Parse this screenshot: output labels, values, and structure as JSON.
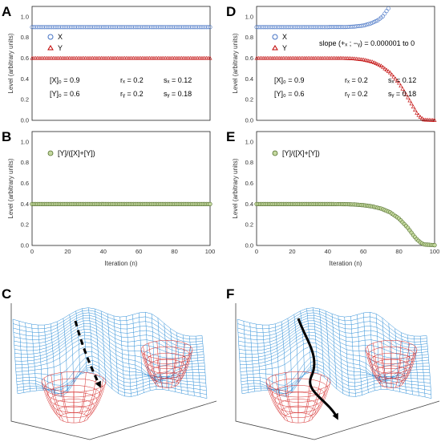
{
  "panels": {
    "A": "A",
    "B": "B",
    "C": "C",
    "D": "D",
    "E": "E",
    "F": "F"
  },
  "chart_data": [
    {
      "id": "A",
      "type": "scatter",
      "title": "",
      "xlabel": "",
      "ylabel": "Level (arbitrary units)",
      "xlim": [
        0,
        100
      ],
      "ylim": [
        0,
        1.1
      ],
      "yticks": [
        "0.0",
        "0.2",
        "0.4",
        "0.6",
        "0.8",
        "1.0"
      ],
      "xticks": [],
      "legend": [
        "X",
        "Y"
      ],
      "legend_position": "top-left",
      "series": [
        {
          "name": "X",
          "marker": "circle",
          "color": "#4472c4",
          "model": "constant",
          "value": 0.9,
          "n_points": 101
        },
        {
          "name": "Y",
          "marker": "triangle",
          "color": "#c00000",
          "model": "constant",
          "value": 0.6,
          "n_points": 101
        }
      ],
      "annotations": [
        [
          "[X]₀ = 0.9",
          "rₓ = 0.2",
          "sₓ = 0.12"
        ],
        [
          "[Y]₀ = 0.6",
          "rᵧ = 0.2",
          "sᵧ = 0.18"
        ]
      ]
    },
    {
      "id": "B",
      "type": "scatter",
      "title": "",
      "xlabel": "Iteration (n)",
      "ylabel": "Level (arbitrary units)",
      "xlim": [
        0,
        100
      ],
      "ylim": [
        0,
        1.1
      ],
      "yticks": [
        "0.0",
        "0.2",
        "0.4",
        "0.6",
        "0.8",
        "1.0"
      ],
      "xticks": [
        "0",
        "20",
        "40",
        "60",
        "80",
        "100"
      ],
      "legend": [
        "[Y]/([X]+[Y])"
      ],
      "legend_position": "top-left",
      "series": [
        {
          "name": "[Y]/([X]+[Y])",
          "marker": "circle",
          "color": "#9bbb59",
          "model": "constant",
          "value": 0.4,
          "n_points": 101
        }
      ]
    },
    {
      "id": "D",
      "type": "scatter",
      "title": "",
      "xlabel": "",
      "ylabel": "Level (arbitrary units)",
      "xlim": [
        0,
        100
      ],
      "ylim": [
        0,
        1.1
      ],
      "yticks": [
        "0.0",
        "0.2",
        "0.4",
        "0.6",
        "0.8",
        "1.0"
      ],
      "xticks": [],
      "legend": [
        "X",
        "Y"
      ],
      "legend_position": "top-left",
      "series": [
        {
          "name": "X",
          "marker": "circle",
          "color": "#4472c4",
          "model": "rising",
          "x": [
            0,
            40,
            50,
            55,
            60,
            64,
            68,
            71,
            74
          ],
          "y": [
            0.9,
            0.9,
            0.901,
            0.905,
            0.915,
            0.935,
            0.965,
            1.005,
            1.08
          ]
        },
        {
          "name": "Y",
          "marker": "triangle",
          "color": "#c00000",
          "model": "falling",
          "x": [
            0,
            40,
            50,
            55,
            60,
            65,
            70,
            75,
            80,
            85,
            88,
            90,
            92,
            94,
            100
          ],
          "y": [
            0.6,
            0.6,
            0.599,
            0.595,
            0.585,
            0.565,
            0.525,
            0.46,
            0.36,
            0.22,
            0.13,
            0.07,
            0.03,
            0.005,
            0.0
          ]
        }
      ],
      "annotations": [
        [
          "[X]₀ = 0.9",
          "rₓ = 0.2",
          "sₓ = 0.12"
        ],
        [
          "[Y]₀ = 0.6",
          "rᵧ = 0.2",
          "sᵧ = 0.18"
        ]
      ],
      "slope_label": "slope (+ₓ ; −ᵧ) = 0.000001 to 0"
    },
    {
      "id": "E",
      "type": "scatter",
      "title": "",
      "xlabel": "Iteration (n)",
      "ylabel": "Level (arbitrary units)",
      "xlim": [
        0,
        100
      ],
      "ylim": [
        0,
        1.1
      ],
      "yticks": [
        "0.0",
        "0.2",
        "0.4",
        "0.6",
        "0.8",
        "1.0"
      ],
      "xticks": [
        "0",
        "20",
        "40",
        "60",
        "80",
        "100"
      ],
      "legend": [
        "[Y]/([X]+[Y])"
      ],
      "legend_position": "top-left",
      "series": [
        {
          "name": "[Y]/([X]+[Y])",
          "marker": "circle",
          "color": "#9bbb59",
          "model": "falling",
          "x": [
            0,
            40,
            50,
            55,
            60,
            65,
            70,
            75,
            80,
            85,
            88,
            90,
            92,
            94,
            100
          ],
          "y": [
            0.4,
            0.4,
            0.399,
            0.396,
            0.389,
            0.377,
            0.356,
            0.32,
            0.26,
            0.17,
            0.1,
            0.06,
            0.03,
            0.01,
            0.003
          ]
        }
      ]
    }
  ],
  "landscapes": {
    "C": {
      "mesh_colors": [
        "#2f8fd8",
        "#d62a2a"
      ],
      "arrow": "dashed-straight"
    },
    "F": {
      "mesh_colors": [
        "#2f8fd8",
        "#d62a2a"
      ],
      "arrow": "solid-curved"
    }
  }
}
